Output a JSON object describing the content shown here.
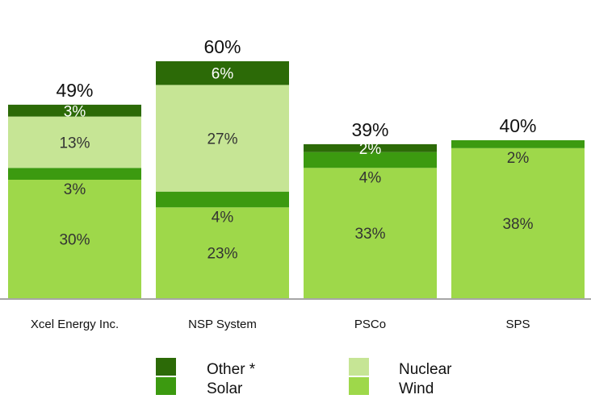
{
  "chart_data": {
    "type": "bar",
    "stacked": true,
    "title": "",
    "xlabel": "",
    "ylabel": "",
    "ylim": [
      0,
      60
    ],
    "grid": false,
    "categories": [
      "Xcel Energy Inc.",
      "NSP System",
      "PSCo",
      "SPS"
    ],
    "series": [
      {
        "name": "Wind",
        "color": "#9ed84a",
        "values": [
          30,
          23,
          33,
          38
        ],
        "labels": [
          "30%",
          "23%",
          "33%",
          "38%"
        ]
      },
      {
        "name": "Solar",
        "color": "#3c9a10",
        "values": [
          3,
          4,
          4,
          2
        ],
        "labels": [
          "3%",
          "4%",
          "4%",
          "2%"
        ]
      },
      {
        "name": "Nuclear",
        "color": "#c6e595",
        "values": [
          13,
          27,
          0,
          0
        ],
        "labels": [
          "13%",
          "27%",
          "",
          ""
        ]
      },
      {
        "name": "Other *",
        "color": "#2c6a07",
        "values": [
          3,
          6,
          2,
          0
        ],
        "labels": [
          "3%",
          "6%",
          "2%",
          ""
        ]
      }
    ],
    "totals": [
      "49%",
      "60%",
      "39%",
      "40%"
    ],
    "legend": {
      "placement": "bottom",
      "entries": [
        "Other *",
        "Nuclear",
        "Solar",
        "Wind"
      ]
    }
  },
  "axis_color": "#a6a6a6"
}
